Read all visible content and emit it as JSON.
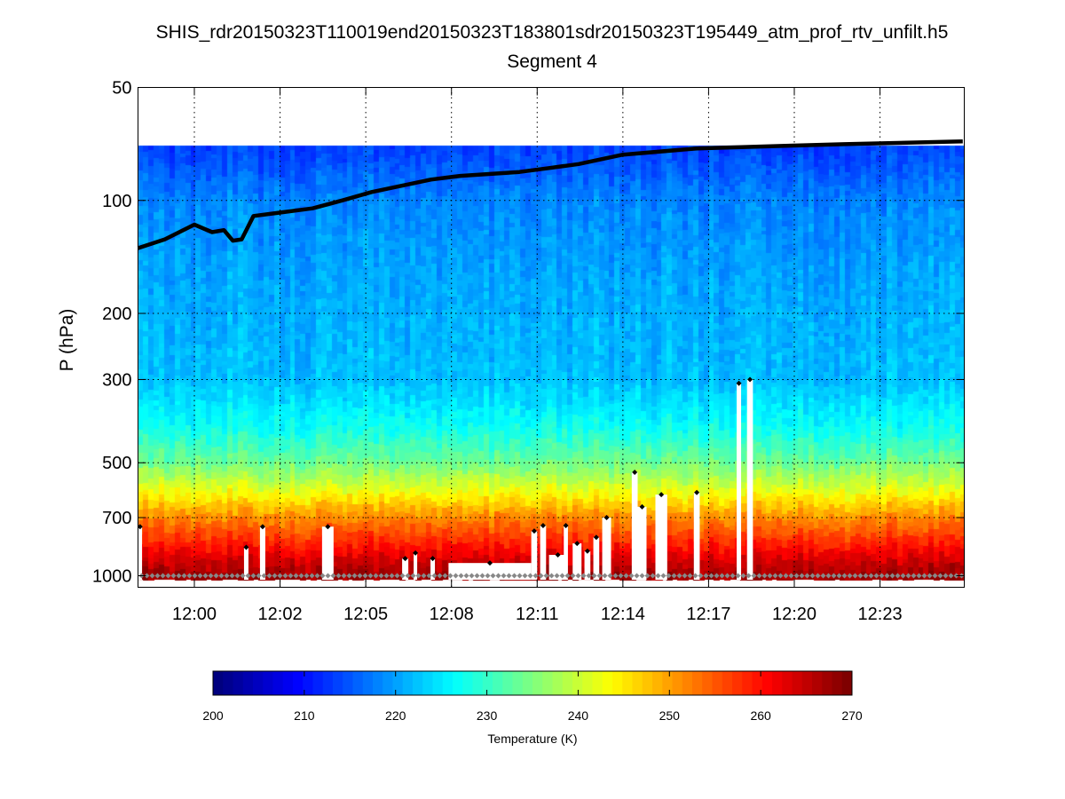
{
  "chart_data": {
    "type": "heatmap",
    "title": "SHIS_rdr20150323T110019end20150323T183801sdr20150323T195449_atm_prof_rtv_unfilt.h5",
    "subtitle": "Segment 4",
    "xlabel": "",
    "ylabel": "P (hPa)",
    "x_units": "minutes after 12:00",
    "xlim": [
      -1.92,
      26.0
    ],
    "ylim": [
      50,
      1075
    ],
    "y_scale": "log",
    "grid": true,
    "x_ticks": [
      {
        "value": 0,
        "label": "12:00"
      },
      {
        "value": 2.9,
        "label": "12:02"
      },
      {
        "value": 5.8,
        "label": "12:05"
      },
      {
        "value": 8.7,
        "label": "12:08"
      },
      {
        "value": 11.6,
        "label": "12:11"
      },
      {
        "value": 14.5,
        "label": "12:14"
      },
      {
        "value": 17.4,
        "label": "12:17"
      },
      {
        "value": 20.3,
        "label": "12:20"
      },
      {
        "value": 23.2,
        "label": "12:23"
      }
    ],
    "y_ticks": [
      {
        "value": 50,
        "label": "50"
      },
      {
        "value": 100,
        "label": "100"
      },
      {
        "value": 200,
        "label": "200"
      },
      {
        "value": 300,
        "label": "300"
      },
      {
        "value": 500,
        "label": "500"
      },
      {
        "value": 700,
        "label": "700"
      },
      {
        "value": 1000,
        "label": "1000"
      }
    ],
    "data_top_pressure": 71.5,
    "mean_temperature_profile": {
      "pressure": [
        71.5,
        100,
        150,
        200,
        300,
        400,
        500,
        600,
        700,
        800,
        900,
        1000,
        1075
      ],
      "temperature": [
        213,
        218,
        220,
        221,
        222,
        227,
        234,
        243,
        252,
        258,
        264,
        268,
        269
      ]
    },
    "line_series": {
      "name": "black profile line (hPa)",
      "t": [
        -1.92,
        -1.0,
        0.0,
        0.6,
        1.0,
        1.3,
        1.6,
        2.0,
        2.8,
        4.0,
        5.0,
        6.0,
        8.0,
        9.0,
        11.0,
        12.0,
        13.0,
        14.5,
        17.0,
        20.0,
        22.0,
        26.0
      ],
      "p": [
        134,
        127,
        116,
        121.5,
        120,
        128,
        127,
        110,
        108,
        105,
        100,
        95,
        88,
        86,
        84,
        82,
        80,
        75.5,
        72.7,
        71.5,
        70.8,
        69.6
      ]
    },
    "masked_columns": [
      {
        "t0": -1.92,
        "t1": -1.77,
        "p_top": 740
      },
      {
        "t0": 1.68,
        "t1": 1.83,
        "p_top": 840
      },
      {
        "t0": 2.22,
        "t1": 2.4,
        "p_top": 740
      },
      {
        "t0": 4.32,
        "t1": 4.71,
        "p_top": 740
      },
      {
        "t0": 7.03,
        "t1": 7.24,
        "p_top": 900
      },
      {
        "t0": 7.42,
        "t1": 7.54,
        "p_top": 870
      },
      {
        "t0": 7.99,
        "t1": 8.14,
        "p_top": 900
      },
      {
        "t0": 8.6,
        "t1": 11.4,
        "p_top": 925
      },
      {
        "t0": 11.4,
        "t1": 11.6,
        "p_top": 760
      },
      {
        "t0": 11.7,
        "t1": 11.9,
        "p_top": 735
      },
      {
        "t0": 12.0,
        "t1": 12.6,
        "p_top": 880
      },
      {
        "t0": 12.5,
        "t1": 12.64,
        "p_top": 735
      },
      {
        "t0": 12.8,
        "t1": 13.1,
        "p_top": 820
      },
      {
        "t0": 13.2,
        "t1": 13.4,
        "p_top": 860
      },
      {
        "t0": 13.5,
        "t1": 13.7,
        "p_top": 790
      },
      {
        "t0": 13.8,
        "t1": 14.1,
        "p_top": 700
      },
      {
        "t0": 14.8,
        "t1": 15.0,
        "p_top": 530
      },
      {
        "t0": 15.0,
        "t1": 15.3,
        "p_top": 655
      },
      {
        "t0": 15.6,
        "t1": 16.0,
        "p_top": 608
      },
      {
        "t0": 16.9,
        "t1": 17.1,
        "p_top": 600
      },
      {
        "t0": 18.35,
        "t1": 18.5,
        "p_top": 307
      },
      {
        "t0": 18.7,
        "t1": 18.9,
        "p_top": 300
      }
    ],
    "surface_marker_pressure": 1000,
    "colorbar": {
      "label": "Temperature (K)",
      "range": [
        200,
        270
      ],
      "ticks": [
        "200",
        "210",
        "220",
        "230",
        "240",
        "250",
        "260",
        "270"
      ],
      "colormap": "jet"
    }
  }
}
